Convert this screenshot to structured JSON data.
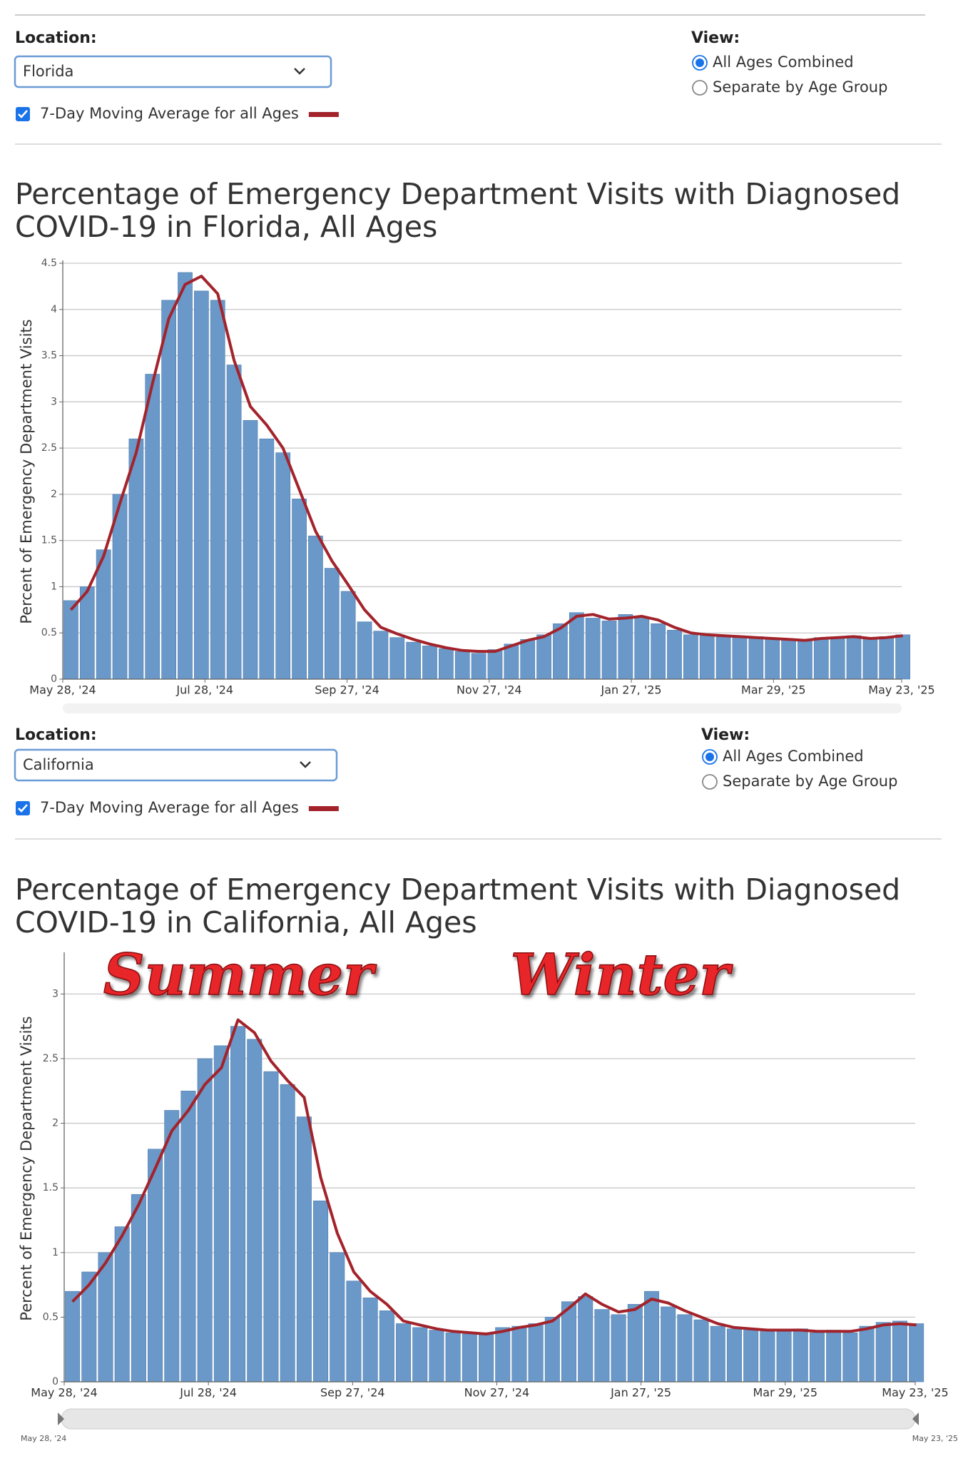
{
  "panels": [
    {
      "location_label": "Location:",
      "location": "Florida",
      "view_label": "View:",
      "view_options": [
        "All Ages Combined",
        "Separate by Age Group"
      ]
    },
    {
      "location_label": "Location:",
      "location": "California",
      "view_label": "View:",
      "view_options": [
        "All Ages Combined",
        "Separate by Age Group"
      ]
    }
  ],
  "chart_data": [
    {
      "type": "bar",
      "title_lines": [
        "Percentage of Emergency Department Visits with Diagnosed",
        "COVID-19 in Florida, All Ages"
      ],
      "ylabel": "Percent of Emergency Department Visits",
      "x": [
        0,
        7,
        14,
        21,
        28,
        35,
        42,
        49,
        56,
        63,
        70,
        77,
        84,
        91,
        98,
        105,
        112,
        119,
        126,
        133,
        140,
        147,
        154,
        161,
        168,
        175,
        182,
        189,
        196,
        203,
        210,
        217,
        224,
        231,
        238,
        245,
        252,
        259,
        266,
        273,
        280,
        287,
        294,
        301,
        308,
        315,
        322,
        329,
        336,
        343,
        350,
        357
      ],
      "xlim": [
        0,
        360
      ],
      "xticks": [
        {
          "value": 0,
          "label": "May 28, '24"
        },
        {
          "value": 61,
          "label": "Jul 28, '24"
        },
        {
          "value": 122,
          "label": "Sep 27, '24"
        },
        {
          "value": 183,
          "label": "Nov 27, '24"
        },
        {
          "value": 244,
          "label": "Jan 27, '25"
        },
        {
          "value": 305,
          "label": "Mar 29, '25"
        },
        {
          "value": 360,
          "label": "May 23, '25"
        }
      ],
      "ylim": [
        0,
        4.5
      ],
      "yticks": [
        0,
        0.5,
        1,
        1.5,
        2,
        2.5,
        3,
        3.5,
        4,
        4.5
      ],
      "grid": true,
      "series": [
        {
          "type": "bar",
          "color": "#6a98c8",
          "values": [
            0.85,
            1.0,
            1.4,
            2.0,
            2.6,
            3.3,
            4.1,
            4.4,
            4.2,
            4.1,
            3.4,
            2.8,
            2.6,
            2.45,
            1.95,
            1.55,
            1.2,
            0.95,
            0.62,
            0.52,
            0.45,
            0.4,
            0.36,
            0.33,
            0.3,
            0.28,
            0.32,
            0.38,
            0.43,
            0.48,
            0.6,
            0.72,
            0.66,
            0.63,
            0.7,
            0.66,
            0.6,
            0.53,
            0.48,
            0.47,
            0.46,
            0.45,
            0.46,
            0.43,
            0.42,
            0.41,
            0.45,
            0.44,
            0.47,
            0.45,
            0.46,
            0.48
          ]
        },
        {
          "type": "line",
          "name": "7-Day Moving Average for all Ages",
          "color": "#a3232b",
          "values": [
            0.75,
            0.95,
            1.33,
            1.9,
            2.45,
            3.2,
            3.9,
            4.27,
            4.36,
            4.17,
            3.45,
            2.95,
            2.75,
            2.5,
            2.05,
            1.6,
            1.28,
            1.02,
            0.75,
            0.56,
            0.49,
            0.43,
            0.38,
            0.34,
            0.31,
            0.3,
            0.3,
            0.36,
            0.42,
            0.46,
            0.55,
            0.68,
            0.7,
            0.65,
            0.66,
            0.68,
            0.64,
            0.56,
            0.5,
            0.48,
            0.47,
            0.46,
            0.45,
            0.44,
            0.43,
            0.42,
            0.44,
            0.45,
            0.46,
            0.44,
            0.45,
            0.47
          ]
        }
      ]
    },
    {
      "type": "bar",
      "title_lines": [
        "Percentage of Emergency Department Visits with Diagnosed",
        "COVID-19 in California, All Ages"
      ],
      "ylabel": "Percent of Emergency Department Visits",
      "x": [
        0,
        7,
        14,
        21,
        28,
        35,
        42,
        49,
        56,
        63,
        70,
        77,
        84,
        91,
        98,
        105,
        112,
        119,
        126,
        133,
        140,
        147,
        154,
        161,
        168,
        175,
        182,
        189,
        196,
        203,
        210,
        217,
        224,
        231,
        238,
        245,
        252,
        259,
        266,
        273,
        280,
        287,
        294,
        301,
        308,
        315,
        322,
        329,
        336,
        343,
        350,
        357
      ],
      "xlim": [
        0,
        360
      ],
      "xticks": [
        {
          "value": 0,
          "label": "May 28, '24"
        },
        {
          "value": 61,
          "label": "Jul 28, '24"
        },
        {
          "value": 122,
          "label": "Sep 27, '24"
        },
        {
          "value": 183,
          "label": "Nov 27, '24"
        },
        {
          "value": 244,
          "label": "Jan 27, '25"
        },
        {
          "value": 305,
          "label": "Mar 29, '25"
        },
        {
          "value": 360,
          "label": "May 23, '25"
        }
      ],
      "ylim": [
        0,
        3.3
      ],
      "yticks": [
        0,
        0.5,
        1,
        1.5,
        2,
        2.5,
        3
      ],
      "grid": true,
      "annotations": [
        "Summer",
        "Winter"
      ],
      "range_labels": [
        "May 28, '24",
        "May 23, '25"
      ],
      "series": [
        {
          "type": "bar",
          "color": "#6a98c8",
          "values": [
            0.7,
            0.85,
            1.0,
            1.2,
            1.45,
            1.8,
            2.1,
            2.25,
            2.5,
            2.6,
            2.75,
            2.65,
            2.4,
            2.3,
            2.05,
            1.4,
            1.0,
            0.78,
            0.65,
            0.55,
            0.45,
            0.42,
            0.4,
            0.38,
            0.37,
            0.38,
            0.42,
            0.43,
            0.45,
            0.5,
            0.62,
            0.66,
            0.56,
            0.52,
            0.6,
            0.7,
            0.58,
            0.52,
            0.48,
            0.43,
            0.41,
            0.4,
            0.4,
            0.39,
            0.41,
            0.38,
            0.4,
            0.38,
            0.43,
            0.46,
            0.47,
            0.45
          ]
        },
        {
          "type": "line",
          "name": "7-Day Moving Average for all Ages",
          "color": "#a3232b",
          "values": [
            0.62,
            0.75,
            0.92,
            1.13,
            1.37,
            1.65,
            1.94,
            2.1,
            2.3,
            2.43,
            2.8,
            2.7,
            2.48,
            2.33,
            2.2,
            1.58,
            1.15,
            0.85,
            0.7,
            0.6,
            0.47,
            0.44,
            0.41,
            0.39,
            0.38,
            0.37,
            0.39,
            0.42,
            0.44,
            0.47,
            0.57,
            0.68,
            0.6,
            0.54,
            0.56,
            0.64,
            0.61,
            0.55,
            0.5,
            0.45,
            0.42,
            0.41,
            0.4,
            0.4,
            0.4,
            0.39,
            0.39,
            0.39,
            0.41,
            0.44,
            0.45,
            0.44
          ]
        }
      ]
    }
  ]
}
